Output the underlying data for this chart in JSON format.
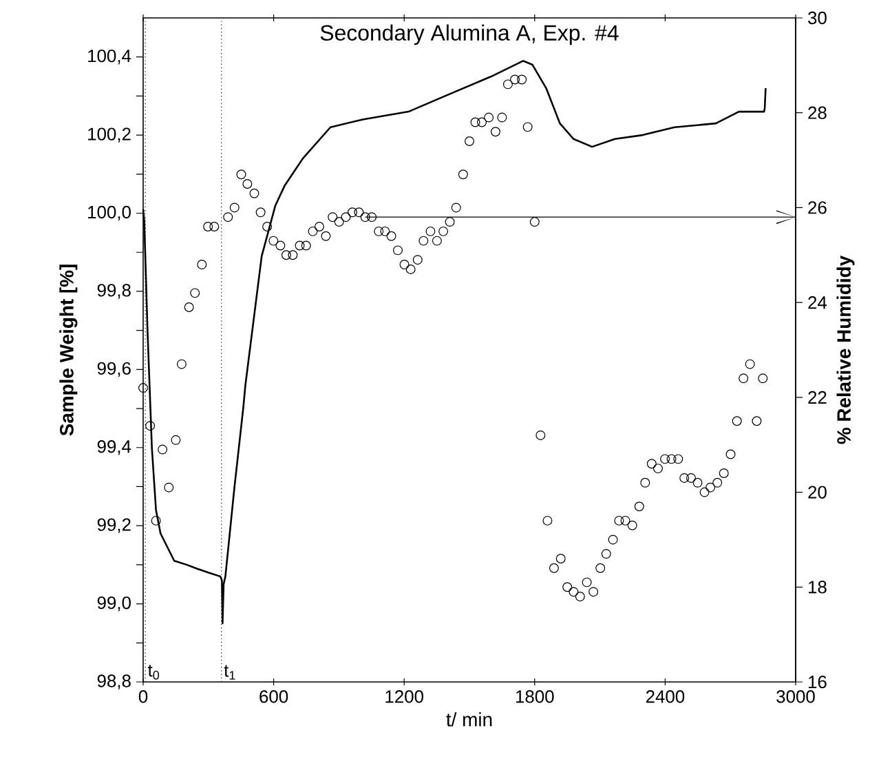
{
  "chart_data": {
    "type": "line",
    "title": "Secondary Alumina A, Exp. #4",
    "xlabel": "t/ min",
    "ylabel": "Sample Weight [%]",
    "y2label": "% Relative Humididy",
    "xlim": [
      0,
      3000
    ],
    "xticks": [
      0,
      600,
      1200,
      1800,
      2400,
      3000
    ],
    "ylim": [
      98.8,
      100.5
    ],
    "yticks": [
      {
        "value": 98.8,
        "label": "98,8"
      },
      {
        "value": 98.9,
        "label": null
      },
      {
        "value": 99.0,
        "label": "99,0"
      },
      {
        "value": 99.1,
        "label": null
      },
      {
        "value": 99.2,
        "label": "99,2"
      },
      {
        "value": 99.3,
        "label": null
      },
      {
        "value": 99.4,
        "label": "99,4"
      },
      {
        "value": 99.5,
        "label": null
      },
      {
        "value": 99.6,
        "label": "99,6"
      },
      {
        "value": 99.7,
        "label": null
      },
      {
        "value": 99.8,
        "label": "99,8"
      },
      {
        "value": 99.9,
        "label": null
      },
      {
        "value": 100.0,
        "label": "100,0"
      },
      {
        "value": 100.1,
        "label": null
      },
      {
        "value": 100.2,
        "label": "100,2"
      },
      {
        "value": 100.3,
        "label": null
      },
      {
        "value": 100.4,
        "label": "100,4"
      }
    ],
    "y2lim": [
      16,
      30
    ],
    "y2ticks": [
      16,
      18,
      20,
      22,
      24,
      26,
      28,
      30
    ],
    "series": [
      {
        "type": "line",
        "color": "#000000",
        "marker": "none",
        "x": [
          0,
          5,
          20,
          40,
          59,
          80,
          143,
          200,
          247,
          300,
          355,
          362,
          365,
          370,
          378,
          420,
          460,
          470,
          545,
          608,
          650,
          734,
          861,
          1009,
          1220,
          1388,
          1600,
          1747,
          1790,
          1853,
          1916,
          1979,
          2064,
          2169,
          2296,
          2443,
          2633,
          2739,
          2855,
          2858,
          2862
        ],
        "values": [
          100.01,
          99.98,
          99.7,
          99.4,
          99.24,
          99.18,
          99.11,
          99.1,
          99.09,
          99.08,
          99.07,
          99.06,
          98.95,
          99.05,
          99.07,
          99.3,
          99.5,
          99.56,
          99.89,
          100.02,
          100.07,
          100.14,
          100.22,
          100.24,
          100.26,
          100.3,
          100.35,
          100.39,
          100.38,
          100.32,
          100.23,
          100.19,
          100.17,
          100.19,
          100.2,
          100.22,
          100.23,
          100.26,
          100.26,
          100.27,
          100.32
        ]
      },
      {
        "type": "scatter",
        "axis": "y2",
        "color": "#000000",
        "marker": "circle",
        "x": [
          0,
          32,
          59,
          89,
          118,
          150,
          177,
          211,
          238,
          270,
          298,
          327,
          390,
          420,
          451,
          479,
          511,
          540,
          570,
          599,
          631,
          658,
          688,
          720,
          749,
          780,
          810,
          840,
          871,
          901,
          932,
          962,
          992,
          1021,
          1051,
          1083,
          1112,
          1141,
          1171,
          1201,
          1230,
          1262,
          1289,
          1321,
          1351,
          1380,
          1410,
          1439,
          1471,
          1500,
          1527,
          1557,
          1589,
          1620,
          1650,
          1677,
          1709,
          1741,
          1768,
          1800,
          1827,
          1859,
          1889,
          1920,
          1950,
          1979,
          2009,
          2040,
          2070,
          2102,
          2129,
          2160,
          2188,
          2217,
          2249,
          2281,
          2308,
          2338,
          2367,
          2399,
          2429,
          2460,
          2488,
          2519,
          2549,
          2581,
          2608,
          2640,
          2670,
          2701,
          2730,
          2760,
          2790,
          2821,
          2849
        ],
        "values": [
          22.2,
          21.4,
          19.4,
          20.9,
          20.1,
          21.1,
          22.7,
          23.9,
          24.2,
          24.8,
          25.6,
          25.6,
          25.8,
          26.0,
          26.7,
          26.5,
          26.3,
          25.9,
          25.6,
          25.3,
          25.2,
          25.0,
          25.0,
          25.2,
          25.2,
          25.5,
          25.6,
          25.4,
          25.8,
          25.7,
          25.8,
          25.9,
          25.9,
          25.8,
          25.8,
          25.5,
          25.5,
          25.4,
          25.1,
          24.8,
          24.7,
          24.9,
          25.3,
          25.5,
          25.3,
          25.5,
          25.7,
          26.0,
          26.7,
          27.4,
          27.8,
          27.8,
          27.9,
          27.6,
          27.9,
          28.6,
          28.7,
          28.7,
          27.7,
          25.7,
          21.2,
          19.4,
          18.4,
          18.6,
          18.0,
          17.9,
          17.8,
          18.1,
          17.9,
          18.4,
          18.7,
          19.0,
          19.4,
          19.4,
          19.3,
          19.7,
          20.2,
          20.6,
          20.5,
          20.7,
          20.7,
          20.7,
          20.3,
          20.3,
          20.2,
          20.0,
          20.1,
          20.2,
          20.4,
          20.8,
          21.5,
          22.4,
          22.7,
          21.5,
          22.4
        ]
      },
      {
        "type": "line",
        "axis": "y2",
        "color": "#000000",
        "marker": "none",
        "x": [
          1021,
          3000
        ],
        "values": [
          25.8,
          25.8
        ]
      }
    ],
    "ref_lines": [
      {
        "axis": "x",
        "value": 10,
        "label": "t$_{0}$",
        "line_style": "dotted"
      },
      {
        "axis": "x",
        "value": 360,
        "label": "t$_{1}$",
        "line_style": "dotted"
      }
    ]
  }
}
